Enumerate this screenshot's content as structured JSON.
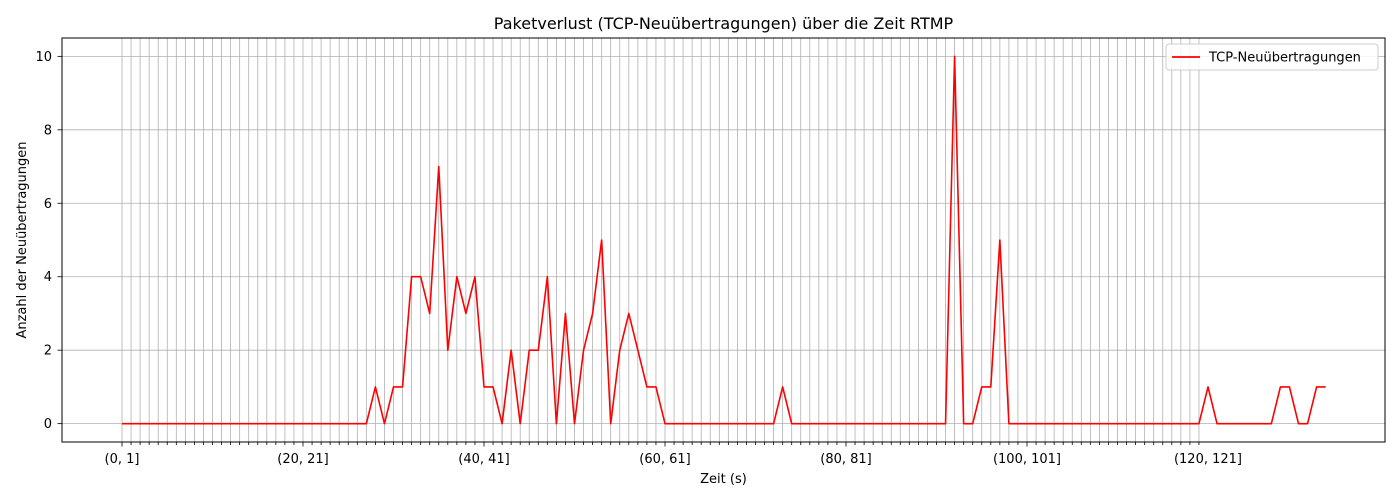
{
  "chart_data": {
    "type": "line",
    "title": "Paketverlust (TCP-Neuübertragungen) über die Zeit RTMP",
    "xlabel": "Zeit (s)",
    "ylabel": "Anzahl der Neuübertragungen",
    "x_tick_labels": [
      "(0, 1]",
      "(20, 21]",
      "(40, 41]",
      "(60, 61]",
      "(80, 81]",
      "(100, 101]",
      "(120, 121]"
    ],
    "x_label_step": 20,
    "x_gridlines_through_index": 119,
    "y_ticks": [
      0,
      2,
      4,
      6,
      8,
      10
    ],
    "ylim": [
      -0.5,
      10.5
    ],
    "grid": true,
    "legend_position": "upper-right",
    "colors": {
      "series": "#ff0000",
      "grid": "#b0b0b0"
    },
    "series": [
      {
        "name": "TCP-Neuübertragungen",
        "x_start_index": 0,
        "values": [
          0,
          0,
          0,
          0,
          0,
          0,
          0,
          0,
          0,
          0,
          0,
          0,
          0,
          0,
          0,
          0,
          0,
          0,
          0,
          0,
          0,
          0,
          0,
          0,
          0,
          0,
          0,
          0,
          1,
          0,
          1,
          1,
          4,
          4,
          3,
          7,
          2,
          4,
          3,
          4,
          1,
          1,
          0,
          2,
          0,
          2,
          2,
          4,
          0,
          3,
          0,
          2,
          3,
          5,
          0,
          2,
          3,
          2,
          1,
          1,
          0,
          0,
          0,
          0,
          0,
          0,
          0,
          0,
          0,
          0,
          0,
          0,
          0,
          1,
          0,
          0,
          0,
          0,
          0,
          0,
          0,
          0,
          0,
          0,
          0,
          0,
          0,
          0,
          0,
          0,
          0,
          0,
          10,
          0,
          0,
          1,
          1,
          5,
          0,
          0,
          0,
          0,
          0,
          0,
          0,
          0,
          0,
          0,
          0,
          0,
          0,
          0,
          0,
          0,
          0,
          0,
          0,
          0,
          0,
          0,
          1,
          0,
          0,
          0,
          0,
          0,
          0,
          0,
          1,
          1,
          0,
          0,
          1,
          1
        ]
      }
    ]
  }
}
